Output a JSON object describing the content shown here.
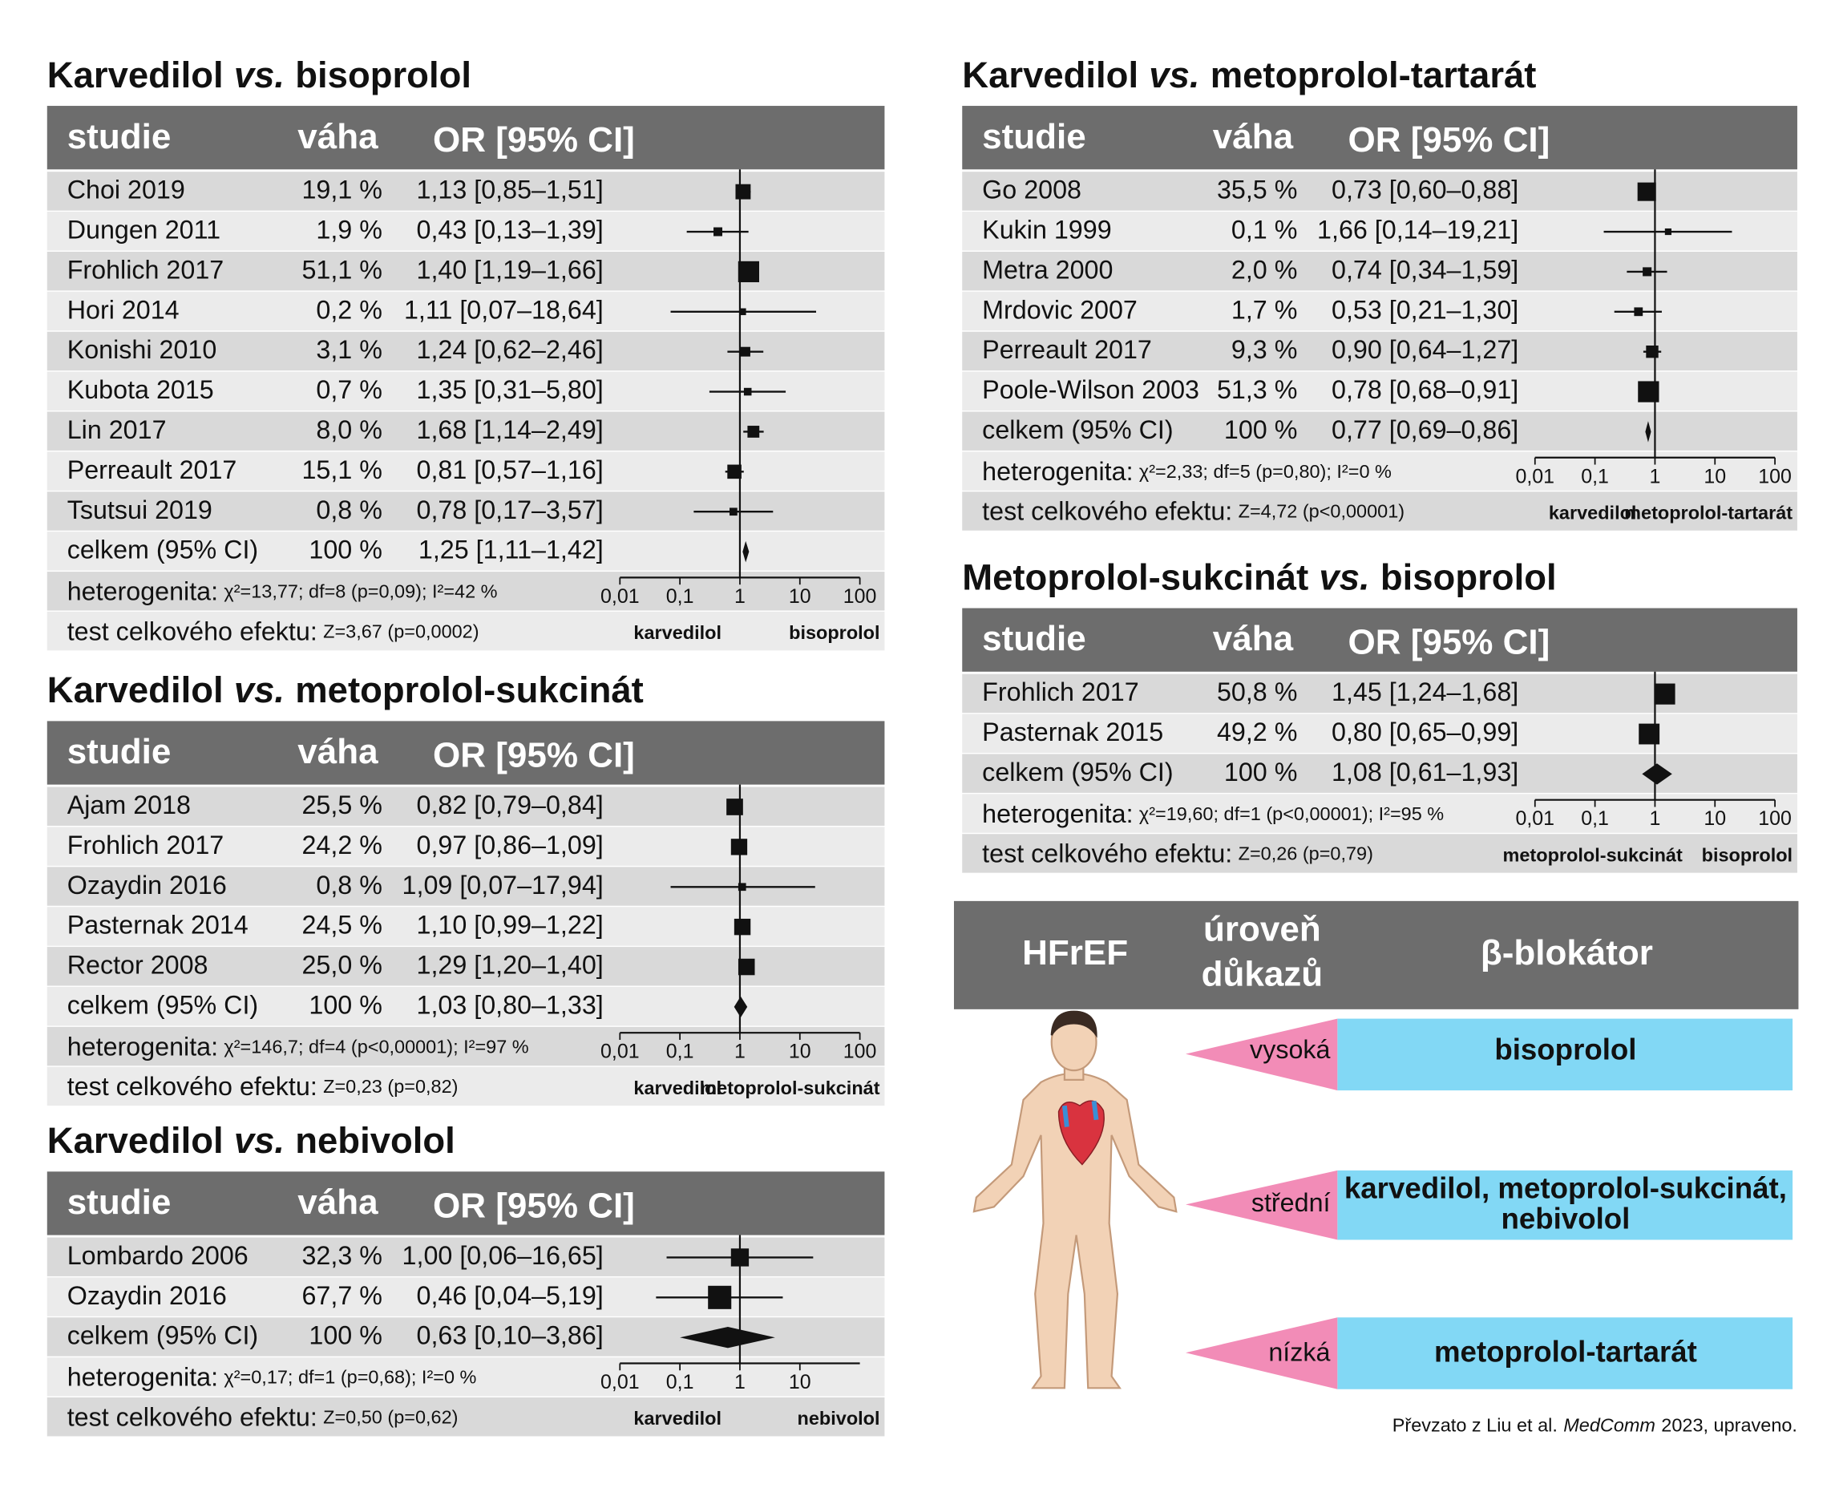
{
  "chart_data": [
    {
      "type": "forest",
      "title": [
        "Karvedilol",
        "vs.",
        "bisoprolol"
      ],
      "columns": [
        "studie",
        "váha",
        "OR [95% CI]"
      ],
      "categories": [
        "Choi 2019",
        "Dungen 2011",
        "Frohlich 2017",
        "Hori 2014",
        "Konishi 2010",
        "Kubota 2015",
        "Lin 2017",
        "Perreault 2017",
        "Tsutsui 2019"
      ],
      "weights": [
        19.1,
        1.9,
        51.1,
        0.2,
        3.1,
        0.7,
        8.0,
        15.1,
        0.8
      ],
      "weight_labels": [
        "19,1 %",
        "1,9 %",
        "51,1 %",
        "0,2 %",
        "3,1 %",
        "0,7 %",
        "8,0 %",
        "15,1 %",
        "0,8 %"
      ],
      "values": [
        1.13,
        0.43,
        1.4,
        1.11,
        1.24,
        1.35,
        1.68,
        0.81,
        0.78
      ],
      "lower": [
        0.85,
        0.13,
        1.19,
        0.07,
        0.62,
        0.31,
        1.14,
        0.57,
        0.17
      ],
      "upper": [
        1.51,
        1.39,
        1.66,
        18.64,
        2.46,
        5.8,
        2.49,
        1.16,
        3.57
      ],
      "value_labels": [
        "1,13 [0,85–1,51]",
        "0,43 [0,13–1,39]",
        "1,40 [1,19–1,66]",
        "1,11 [0,07–18,64]",
        "1,24 [0,62–2,46]",
        "1,35 [0,31–5,80]",
        "1,68 [1,14–2,49]",
        "0,81 [0,57–1,16]",
        "0,78 [0,17–3,57]"
      ],
      "total": {
        "label": "celkem (95% CI)",
        "weight": 100,
        "weight_label": "100 %",
        "value": 1.25,
        "lower": 1.11,
        "upper": 1.42,
        "value_label": "1,25 [1,11–1,42]"
      },
      "heterogeneity": [
        "heterogenita:",
        "χ²=13,77; df=8 (p=0,09); I²=42 %"
      ],
      "overall_effect": [
        "test celkového efektu:",
        "Z=3,67 (p=0,0002)"
      ],
      "x_scale": "log",
      "xlim": [
        0.01,
        100
      ],
      "xticks": [
        {
          "value": 0.01,
          "label": "0,01"
        },
        {
          "value": 0.1,
          "label": "0,1"
        },
        1,
        10,
        100
      ],
      "favours": [
        "karvedilol",
        "bisoprolol"
      ],
      "color": "#111111"
    },
    {
      "type": "forest",
      "title": [
        "Karvedilol",
        "vs.",
        "metoprolol-sukcinát"
      ],
      "columns": [
        "studie",
        "váha",
        "OR [95% CI]"
      ],
      "categories": [
        "Ajam 2018",
        "Frohlich 2017",
        "Ozaydin 2016",
        "Pasternak 2014",
        "Rector 2008"
      ],
      "weights": [
        25.5,
        24.2,
        0.8,
        24.5,
        25.0
      ],
      "weight_labels": [
        "25,5 %",
        "24,2 %",
        "0,8 %",
        "24,5 %",
        "25,0 %"
      ],
      "values": [
        0.82,
        0.97,
        1.09,
        1.1,
        1.29
      ],
      "lower": [
        0.79,
        0.86,
        0.07,
        0.99,
        1.2
      ],
      "upper": [
        0.84,
        1.09,
        17.94,
        1.22,
        1.4
      ],
      "value_labels": [
        "0,82 [0,79–0,84]",
        "0,97 [0,86–1,09]",
        "1,09 [0,07–17,94]",
        "1,10 [0,99–1,22]",
        "1,29 [1,20–1,40]"
      ],
      "total": {
        "label": "celkem (95% CI)",
        "weight": 100,
        "weight_label": "100 %",
        "value": 1.03,
        "lower": 0.8,
        "upper": 1.33,
        "value_label": "1,03 [0,80–1,33]"
      },
      "heterogeneity": [
        "heterogenita:",
        "χ²=146,7; df=4 (p<0,00001); I²=97 %"
      ],
      "overall_effect": [
        "test celkového efektu:",
        "Z=0,23 (p=0,82)"
      ],
      "x_scale": "log",
      "xlim": [
        0.01,
        100
      ],
      "xticks": [
        {
          "value": 0.01,
          "label": "0,01"
        },
        {
          "value": 0.1,
          "label": "0,1"
        },
        1,
        10,
        100
      ],
      "favours": [
        "karvedilol",
        "metoprolol-sukcinát"
      ],
      "color": "#111111"
    },
    {
      "type": "forest",
      "title": [
        "Karvedilol",
        "vs.",
        "nebivolol"
      ],
      "columns": [
        "studie",
        "váha",
        "OR [95% CI]"
      ],
      "categories": [
        "Lombardo 2006",
        "Ozaydin 2016"
      ],
      "weights": [
        32.3,
        67.7
      ],
      "weight_labels": [
        "32,3 %",
        "67,7 %"
      ],
      "values": [
        1.0,
        0.46
      ],
      "lower": [
        0.06,
        0.04
      ],
      "upper": [
        16.65,
        5.19
      ],
      "value_labels": [
        "1,00 [0,06–16,65]",
        "0,46 [0,04–5,19]"
      ],
      "total": {
        "label": "celkem (95% CI)",
        "weight": 100,
        "weight_label": "100 %",
        "value": 0.63,
        "lower": 0.1,
        "upper": 3.86,
        "value_label": "0,63 [0,10–3,86]"
      },
      "heterogeneity": [
        "heterogenita:",
        "χ²=0,17; df=1 (p=0,68); I²=0 %"
      ],
      "overall_effect": [
        "test celkového efektu:",
        "Z=0,50 (p=0,62)"
      ],
      "x_scale": "log",
      "xlim": [
        0.01,
        100
      ],
      "xticks": [
        {
          "value": 0.01,
          "label": "0,01"
        },
        {
          "value": 0.1,
          "label": "0,1"
        },
        1,
        10
      ],
      "favours": [
        "karvedilol",
        "nebivolol"
      ],
      "color": "#111111"
    },
    {
      "type": "forest",
      "title": [
        "Karvedilol",
        "vs.",
        "metoprolol-tartarát"
      ],
      "columns": [
        "studie",
        "váha",
        "OR [95% CI]"
      ],
      "categories": [
        "Go 2008",
        "Kukin 1999",
        "Metra 2000",
        "Mrdovic 2007",
        "Perreault 2017",
        "Poole-Wilson 2003"
      ],
      "weights": [
        35.5,
        0.1,
        2.0,
        1.7,
        9.3,
        51.3
      ],
      "weight_labels": [
        "35,5 %",
        "0,1 %",
        "2,0 %",
        "1,7 %",
        "9,3 %",
        "51,3 %"
      ],
      "values": [
        0.73,
        1.66,
        0.74,
        0.53,
        0.9,
        0.78
      ],
      "lower": [
        0.6,
        0.14,
        0.34,
        0.21,
        0.64,
        0.68
      ],
      "upper": [
        0.88,
        19.21,
        1.59,
        1.3,
        1.27,
        0.91
      ],
      "value_labels": [
        "0,73 [0,60–0,88]",
        "1,66 [0,14–19,21]",
        "0,74 [0,34–1,59]",
        "0,53 [0,21–1,30]",
        "0,90 [0,64–1,27]",
        "0,78 [0,68–0,91]"
      ],
      "total": {
        "label": "celkem (95% CI)",
        "weight": 100,
        "weight_label": "100 %",
        "value": 0.77,
        "lower": 0.69,
        "upper": 0.86,
        "value_label": "0,77 [0,69–0,86]"
      },
      "heterogeneity": [
        "heterogenita:",
        "χ²=2,33; df=5 (p=0,80); I²=0 %"
      ],
      "overall_effect": [
        "test celkového efektu:",
        "Z=4,72 (p<0,00001)"
      ],
      "x_scale": "log",
      "xlim": [
        0.01,
        100
      ],
      "xticks": [
        {
          "value": 0.01,
          "label": "0,01"
        },
        {
          "value": 0.1,
          "label": "0,1"
        },
        1,
        10,
        100
      ],
      "favours": [
        "karvedilol",
        "metoprolol-tartarát"
      ],
      "color": "#111111"
    },
    {
      "type": "forest",
      "title": [
        "Metoprolol-sukcinát",
        "vs.",
        "bisoprolol"
      ],
      "columns": [
        "studie",
        "váha",
        "OR [95% CI]"
      ],
      "categories": [
        "Frohlich 2017",
        "Pasternak 2015"
      ],
      "weights": [
        50.8,
        49.2
      ],
      "weight_labels": [
        "50,8 %",
        "49,2 %"
      ],
      "values": [
        1.45,
        0.8
      ],
      "lower": [
        1.24,
        0.65
      ],
      "upper": [
        1.68,
        0.99
      ],
      "value_labels": [
        "1,45 [1,24–1,68]",
        "0,80 [0,65–0,99]"
      ],
      "total": {
        "label": "celkem (95% CI)",
        "weight": 100,
        "weight_label": "100 %",
        "value": 1.08,
        "lower": 0.61,
        "upper": 1.93,
        "value_label": "1,08 [0,61–1,93]"
      },
      "heterogeneity": [
        "heterogenita:",
        "χ²=19,60; df=1 (p<0,00001); I²=95 %"
      ],
      "overall_effect": [
        "test celkového efektu:",
        "Z=0,26 (p=0,79)"
      ],
      "x_scale": "log",
      "xlim": [
        0.01,
        100
      ],
      "xticks": [
        {
          "value": 0.01,
          "label": "0,01"
        },
        {
          "value": 0.1,
          "label": "0,1"
        },
        1,
        10,
        100
      ],
      "favours": [
        "metoprolol-sukcinát",
        "bisoprolol"
      ],
      "color": "#111111"
    }
  ],
  "summary": {
    "headers": [
      [
        "HFrEF"
      ],
      [
        "úroveň",
        "důkazů"
      ],
      [
        "β-blokátor"
      ]
    ],
    "levels": [
      {
        "level": "vysoká",
        "drugs": [
          "bisoprolol"
        ]
      },
      {
        "level": "střední",
        "drugs": [
          "karvedilol, metoprolol-sukcinát,",
          "nebivolol"
        ]
      },
      {
        "level": "nízká",
        "drugs": [
          "metoprolol-tartarát"
        ]
      }
    ]
  },
  "credit": [
    "Převzato z Liu et al.",
    "MedComm",
    "2023, upraveno."
  ]
}
